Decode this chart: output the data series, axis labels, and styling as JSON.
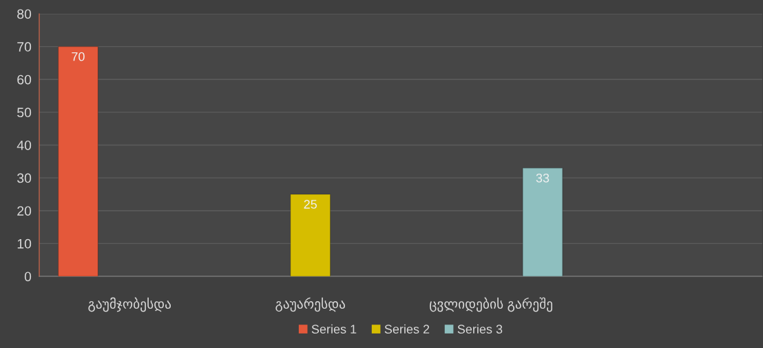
{
  "chart_data": {
    "type": "bar",
    "categories": [
      "გაუმჯობესდა",
      "გაუარესდა",
      "ცვლიდების გარეშე",
      null
    ],
    "series": [
      {
        "name": "Series 1",
        "color": "#e4583a",
        "values": [
          70,
          null,
          null,
          null
        ]
      },
      {
        "name": "Series 2",
        "color": "#d6bd00",
        "values": [
          null,
          25,
          null,
          null
        ]
      },
      {
        "name": "Series 3",
        "color": "#8ebfbf",
        "values": [
          null,
          null,
          33,
          null
        ]
      }
    ],
    "ylim": [
      0,
      80
    ],
    "yticks": [
      0,
      10,
      20,
      30,
      40,
      50,
      60,
      70,
      80
    ],
    "grid": "y",
    "legend": "bottom",
    "data_labels": true
  }
}
